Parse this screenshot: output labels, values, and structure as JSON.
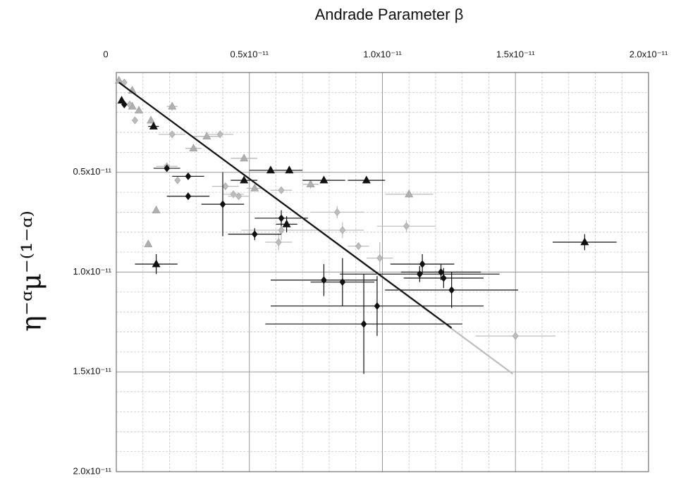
{
  "chart_data": {
    "type": "scatter",
    "title": "Andrade Parameter β",
    "y_label": "η⁻ᵅμ⁻⁽¹⁻ᵅ⁾",
    "x_axis_position": "top",
    "y_inverted": true,
    "grid": true,
    "xlim": [
      0,
      2e-11
    ],
    "ylim": [
      0,
      2e-11
    ],
    "xticks": [
      0,
      {
        "value": 5e-12,
        "label": "0.5x10⁻¹¹"
      },
      {
        "value": 1e-11,
        "label": "1.0x10⁻¹¹"
      },
      {
        "value": 1.5e-11,
        "label": "1.5x10⁻¹¹"
      },
      {
        "value": 2e-11,
        "label": "2.0x10⁻¹¹"
      }
    ],
    "yticks": [
      {
        "value": 5e-12,
        "label": "0.5x10⁻¹¹"
      },
      {
        "value": 1e-11,
        "label": "1.0x10⁻¹¹"
      },
      {
        "value": 1.5e-11,
        "label": "1.5x10⁻¹¹"
      },
      {
        "value": 2e-11,
        "label": "2.0x10⁻¹¹"
      }
    ],
    "xminor_ticks": [
      1e-12,
      2e-12,
      3e-12,
      4e-12,
      6e-12,
      7e-12,
      8e-12,
      9e-12,
      1.1e-11,
      1.2e-11,
      1.3e-11,
      1.4e-11,
      1.6e-11,
      1.7e-11,
      1.8e-11,
      1.9e-11
    ],
    "yminor_ticks": [
      1e-12,
      2e-12,
      3e-12,
      4e-12,
      6e-12,
      7e-12,
      8e-12,
      9e-12,
      1.1e-11,
      1.2e-11,
      1.3e-11,
      1.4e-11,
      1.6e-11,
      1.7e-11,
      1.8e-11,
      1.9e-11
    ],
    "series": [
      {
        "marker": "triangle",
        "color": "#b0b0b0",
        "x": [
          1e-13,
          6e-13,
          8.5e-13,
          1.3e-12,
          2.1e-12,
          2.9e-12,
          3.4e-12,
          4.8e-12,
          5.2e-12,
          7.3e-12,
          1.1e-11,
          1.5e-12,
          1.2e-12,
          6e-13
        ],
        "values": [
          4e-13,
          9e-13,
          1.9e-12,
          2.4e-12,
          1.7e-12,
          3.8e-12,
          3.2e-12,
          4.3e-12,
          5.8e-12,
          5.6e-12,
          6.1e-12,
          6.9e-12,
          8.6e-12,
          1.7e-12
        ],
        "xerr": [
          null,
          null,
          null,
          null,
          2e-13,
          3e-13,
          5e-13,
          5e-13,
          3e-13,
          3e-13,
          9e-13,
          null,
          null,
          null
        ],
        "yerr": [
          null,
          null,
          null,
          null,
          2e-13,
          null,
          null,
          null,
          null,
          2e-13,
          2e-13,
          null,
          null,
          null
        ]
      },
      {
        "marker": "diamond",
        "color": "#bdbdbd",
        "x": [
          3e-13,
          5e-13,
          7e-13,
          2.1e-12,
          1.9e-12,
          2.3e-12,
          3.9e-12,
          4.1e-12,
          4.4e-12,
          4.6e-12,
          6.2e-12,
          8.3e-12,
          8.5e-12,
          6.2e-12,
          6.1e-12,
          9.1e-12,
          9.9e-12,
          1.09e-11,
          1.5e-11
        ],
        "values": [
          5e-13,
          1.6e-12,
          2.4e-12,
          3.1e-12,
          4.7e-12,
          5.4e-12,
          3.1e-12,
          5.7e-12,
          6.1e-12,
          6.2e-12,
          5.9e-12,
          7e-12,
          7.9e-12,
          7.9e-12,
          8.5e-12,
          8.7e-12,
          9.3e-12,
          7.7e-12,
          1.32e-11
        ],
        "xerr": [
          null,
          null,
          null,
          5e-13,
          4e-13,
          null,
          5e-13,
          5e-13,
          4e-13,
          4e-13,
          4e-13,
          1e-12,
          8e-13,
          1.5e-12,
          5e-13,
          4e-13,
          5e-13,
          1.1e-12,
          1.5e-12
        ],
        "yerr": [
          null,
          null,
          null,
          null,
          null,
          null,
          null,
          null,
          null,
          null,
          null,
          3e-13,
          4e-13,
          5e-13,
          4e-13,
          null,
          8e-13,
          3e-13,
          7e-13
        ]
      },
      {
        "marker": "diamond",
        "color": "#111111",
        "x": [
          3e-13,
          1.9e-12,
          2.7e-12,
          2.7e-12,
          4e-12,
          5.2e-12,
          6.2e-12,
          7.8e-12,
          8.5e-12,
          9.8e-12,
          9.3e-12,
          1.15e-11,
          1.14e-11,
          1.22e-11,
          1.23e-11,
          1.26e-11
        ],
        "values": [
          1.6e-12,
          4.8e-12,
          5.2e-12,
          6.2e-12,
          6.6e-12,
          8.1e-12,
          7.3e-12,
          1.04e-11,
          1.05e-11,
          1.17e-11,
          1.26e-11,
          9.6e-12,
          1.01e-11,
          1e-11,
          1.03e-11,
          1.09e-11
        ],
        "xerr": [
          null,
          5e-13,
          6e-13,
          8e-13,
          8e-13,
          1e-12,
          1e-12,
          2e-12,
          1.2e-12,
          4e-12,
          3.7e-12,
          1.2e-12,
          3e-12,
          1.5e-12,
          1.5e-12,
          2.5e-12
        ],
        "yerr": [
          null,
          null,
          null,
          null,
          1.6e-12,
          3e-13,
          4e-13,
          8e-13,
          1.2e-12,
          1.5e-12,
          2.5e-12,
          5e-13,
          4e-13,
          4e-13,
          5e-13,
          9e-13
        ]
      },
      {
        "marker": "triangle",
        "color": "#111111",
        "x": [
          2e-13,
          1.4e-12,
          1.5e-12,
          4.8e-12,
          5.8e-12,
          6.5e-12,
          7.8e-12,
          9.4e-12,
          6.4e-12,
          1.76e-11
        ],
        "values": [
          1.4e-12,
          2.7e-12,
          9.6e-12,
          5.4e-12,
          4.9e-12,
          4.9e-12,
          5.4e-12,
          5.4e-12,
          7.6e-12,
          8.5e-12
        ],
        "xerr": [
          null,
          2e-13,
          8e-13,
          5e-13,
          8e-13,
          5e-13,
          8e-13,
          7e-13,
          4e-13,
          1.2e-12
        ],
        "yerr": [
          null,
          null,
          5e-13,
          null,
          null,
          null,
          null,
          null,
          4e-13,
          4e-13
        ]
      }
    ],
    "fits": [
      {
        "color": "#bdbdbd",
        "x": [
          1e-13,
          1.49e-11
        ],
        "values": [
          5e-13,
          1.51e-11
        ]
      },
      {
        "color": "#111111",
        "x": [
          1e-13,
          1.26e-11
        ],
        "values": [
          5e-13,
          1.28e-11
        ]
      }
    ]
  }
}
